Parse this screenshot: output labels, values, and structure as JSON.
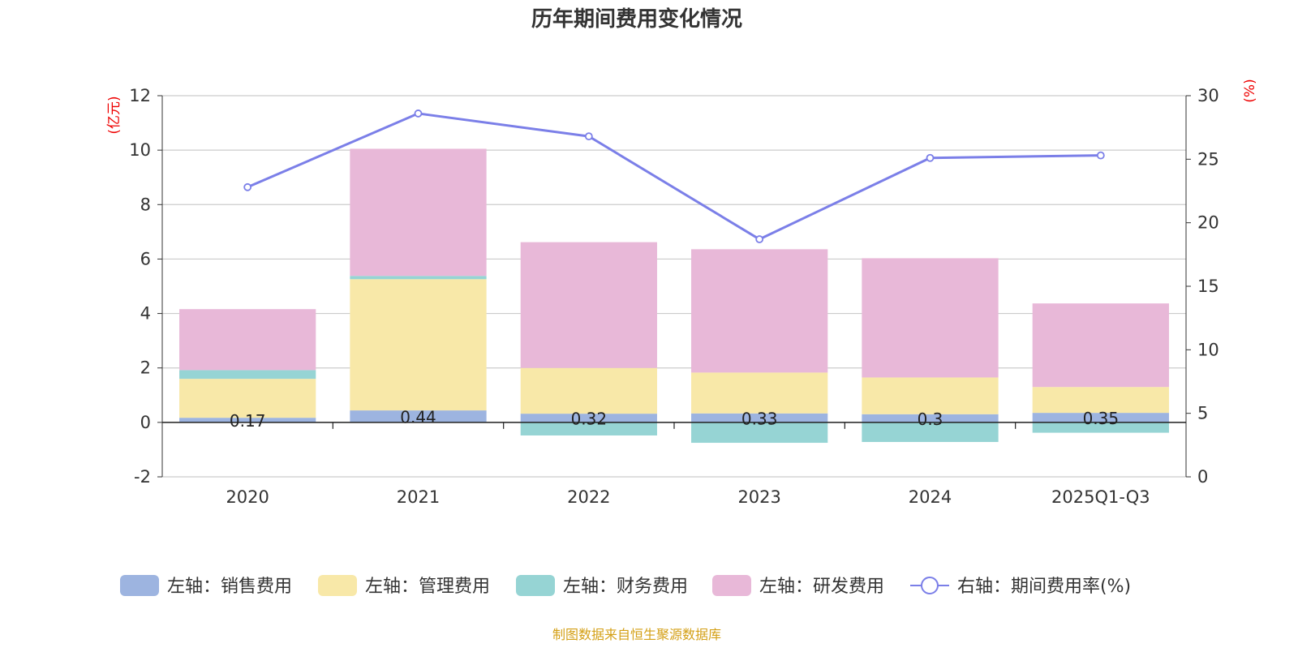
{
  "chart_data": {
    "type": "bar+line",
    "title": "历年期间费用变化情况",
    "categories": [
      "2020",
      "2021",
      "2022",
      "2023",
      "2024",
      "2025Q1-Q3"
    ],
    "left_axis": {
      "unit": "(亿元)",
      "min": -2,
      "max": 12,
      "ticks": [
        -2,
        0,
        2,
        4,
        6,
        8,
        10,
        12
      ]
    },
    "right_axis": {
      "unit": "(%)",
      "min": 0,
      "max": 30,
      "ticks": [
        0,
        5,
        10,
        15,
        20,
        25,
        30
      ]
    },
    "series": [
      {
        "name": "左轴：销售费用",
        "type": "bar",
        "axis": "left",
        "color": "#9db4e0",
        "values": [
          0.17,
          0.44,
          0.32,
          0.33,
          0.3,
          0.35
        ],
        "labels": [
          "0.17",
          "0.44",
          "0.32",
          "0.33",
          "0.3",
          "0.35"
        ]
      },
      {
        "name": "左轴：管理费用",
        "type": "bar",
        "axis": "left",
        "color": "#f8e8a8",
        "values": [
          1.43,
          4.82,
          1.68,
          1.5,
          1.35,
          0.95
        ]
      },
      {
        "name": "左轴：财务费用",
        "type": "bar",
        "axis": "left",
        "color": "#96d4d4",
        "values": [
          0.32,
          0.12,
          -0.48,
          -0.75,
          -0.72,
          -0.38
        ]
      },
      {
        "name": "左轴：研发费用",
        "type": "bar",
        "axis": "left",
        "color": "#e8b8d8",
        "values": [
          2.24,
          4.67,
          4.62,
          4.53,
          4.38,
          3.07
        ]
      },
      {
        "name": "右轴：期间费用率(%)",
        "type": "line",
        "axis": "right",
        "color": "#7b7fe8",
        "values": [
          22.8,
          28.6,
          26.8,
          18.7,
          25.1,
          25.3
        ]
      }
    ]
  },
  "source": "制图数据来自恒生聚源数据库"
}
